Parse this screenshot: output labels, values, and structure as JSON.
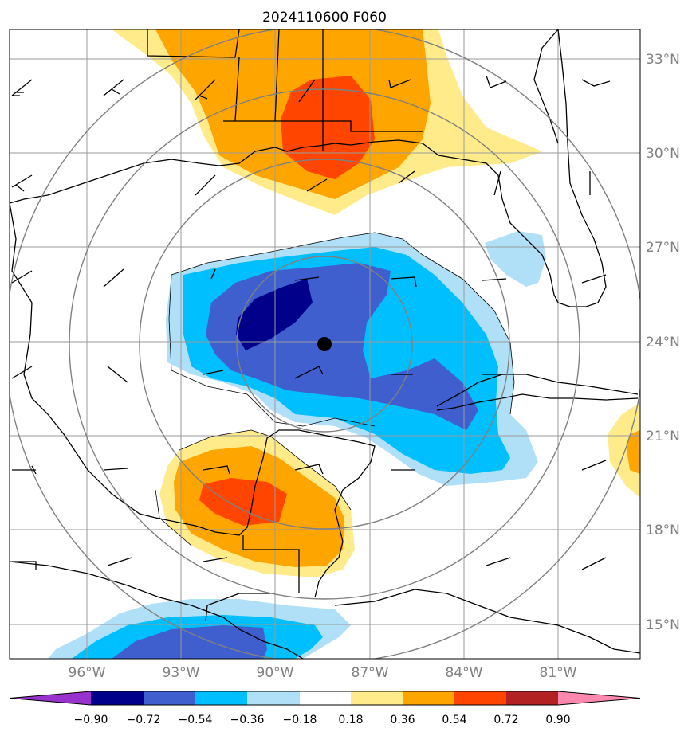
{
  "title": "2024110600 F060",
  "lat_labels": [
    "33°N",
    "30°N",
    "27°N",
    "24°N",
    "21°N",
    "18°N",
    "15°N"
  ],
  "lon_labels": [
    "96°W",
    "93°W",
    "90°W",
    "87°W",
    "84°W",
    "81°W"
  ],
  "colorbar": {
    "ticks": [
      "−0.90",
      "−0.72",
      "−0.54",
      "−0.36",
      "−0.18",
      "0.18",
      "0.36",
      "0.54",
      "0.72",
      "0.90"
    ],
    "colors": [
      "#9932cc",
      "#00008b",
      "#3f5fcf",
      "#00bfff",
      "#b0e0f8",
      "#ffffff",
      "#ffeb8a",
      "#ffa500",
      "#ff4500",
      "#b22222",
      "#ff88b0"
    ]
  },
  "storm_center": {
    "lat": "24°N",
    "lon": "88.5°W"
  }
}
